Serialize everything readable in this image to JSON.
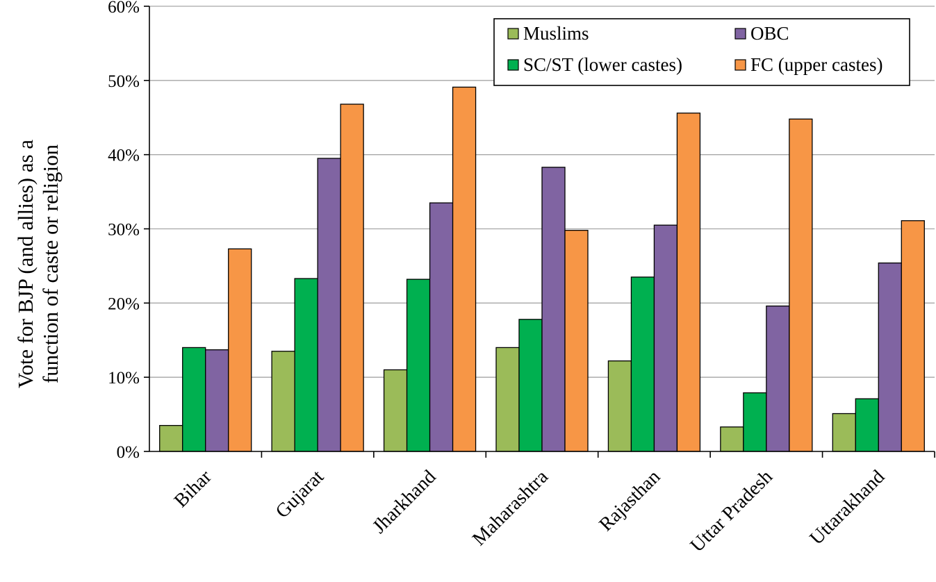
{
  "chart_data": {
    "type": "bar",
    "categories": [
      "Bihar",
      "Gujarat",
      "Jharkhand",
      "Maharashtra",
      "Rajasthan",
      "Uttar Pradesh",
      "Uttarakhand"
    ],
    "series": [
      {
        "name": "Muslims",
        "color": "#9BBB59",
        "values": [
          3.5,
          13.5,
          11.0,
          14.0,
          12.2,
          3.3,
          5.1
        ]
      },
      {
        "name": "SC/ST (lower castes)",
        "color": "#00B050",
        "values": [
          14.0,
          23.3,
          23.2,
          17.8,
          23.5,
          7.9,
          7.1
        ]
      },
      {
        "name": "OBC",
        "color": "#8064A2",
        "values": [
          13.7,
          39.5,
          33.5,
          38.3,
          30.5,
          19.6,
          25.4
        ]
      },
      {
        "name": "FC (upper castes)",
        "color": "#F79646",
        "values": [
          27.3,
          46.8,
          49.1,
          29.8,
          45.6,
          44.8,
          31.1
        ]
      }
    ],
    "yticks": [
      "0%",
      "10%",
      "20%",
      "30%",
      "40%",
      "50%",
      "60%"
    ],
    "ylim": [
      0,
      60
    ],
    "ylabel_lines": [
      "Vote for BJP (and allies) as a",
      "function of caste or religion"
    ],
    "grid": true,
    "legend_position": "top-right"
  }
}
